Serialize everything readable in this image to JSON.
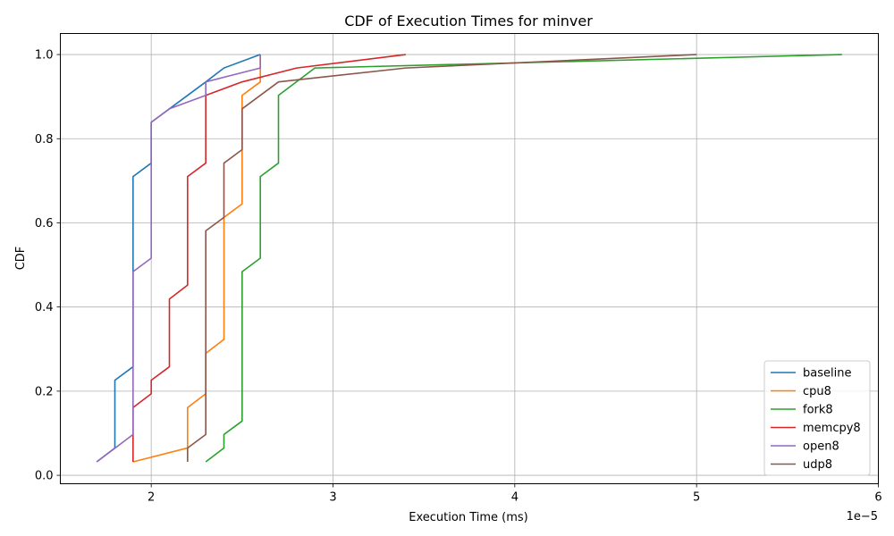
{
  "chart_data": {
    "type": "line",
    "title": "CDF of Execution Times for minver",
    "xlabel": "Execution Time (ms)",
    "ylabel": "CDF",
    "x_offset_label": "1e−5",
    "xlim": [
      1.5,
      6.0
    ],
    "ylim": [
      -0.02,
      1.05
    ],
    "x_ticks": [
      2,
      3,
      4,
      5,
      6
    ],
    "x_tick_labels": [
      "2",
      "3",
      "4",
      "5",
      "6"
    ],
    "y_ticks": [
      0.0,
      0.2,
      0.4,
      0.6,
      0.8,
      1.0
    ],
    "y_tick_labels": [
      "0.0",
      "0.2",
      "0.4",
      "0.6",
      "0.8",
      "1.0"
    ],
    "grid": true,
    "legend_position": "bottom-right",
    "series": [
      {
        "name": "baseline",
        "color": "#1f77b4",
        "points": [
          [
            1.7,
            0.032
          ],
          [
            1.8,
            0.065
          ],
          [
            1.8,
            0.226
          ],
          [
            1.9,
            0.258
          ],
          [
            1.9,
            0.71
          ],
          [
            2.0,
            0.742
          ],
          [
            2.0,
            0.839
          ],
          [
            2.1,
            0.871
          ],
          [
            2.3,
            0.935
          ],
          [
            2.4,
            0.968
          ],
          [
            2.6,
            1.0
          ]
        ]
      },
      {
        "name": "cpu8",
        "color": "#ff7f0e",
        "points": [
          [
            1.9,
            0.032
          ],
          [
            2.2,
            0.065
          ],
          [
            2.2,
            0.161
          ],
          [
            2.3,
            0.194
          ],
          [
            2.3,
            0.29
          ],
          [
            2.4,
            0.323
          ],
          [
            2.4,
            0.613
          ],
          [
            2.5,
            0.645
          ],
          [
            2.5,
            0.903
          ],
          [
            2.6,
            0.935
          ],
          [
            2.6,
            1.0
          ]
        ]
      },
      {
        "name": "fork8",
        "color": "#2ca02c",
        "points": [
          [
            2.3,
            0.032
          ],
          [
            2.4,
            0.065
          ],
          [
            2.4,
            0.097
          ],
          [
            2.5,
            0.129
          ],
          [
            2.5,
            0.484
          ],
          [
            2.6,
            0.516
          ],
          [
            2.6,
            0.71
          ],
          [
            2.7,
            0.742
          ],
          [
            2.7,
            0.903
          ],
          [
            2.9,
            0.968
          ],
          [
            5.8,
            1.0
          ]
        ]
      },
      {
        "name": "memcpy8",
        "color": "#d62728",
        "points": [
          [
            1.9,
            0.032
          ],
          [
            1.9,
            0.161
          ],
          [
            2.0,
            0.194
          ],
          [
            2.0,
            0.226
          ],
          [
            2.1,
            0.258
          ],
          [
            2.1,
            0.419
          ],
          [
            2.2,
            0.452
          ],
          [
            2.2,
            0.71
          ],
          [
            2.3,
            0.742
          ],
          [
            2.3,
            0.903
          ],
          [
            2.5,
            0.935
          ],
          [
            2.8,
            0.968
          ],
          [
            3.4,
            1.0
          ]
        ]
      },
      {
        "name": "open8",
        "color": "#9467bd",
        "points": [
          [
            1.7,
            0.032
          ],
          [
            1.9,
            0.097
          ],
          [
            1.9,
            0.484
          ],
          [
            2.0,
            0.516
          ],
          [
            2.0,
            0.839
          ],
          [
            2.1,
            0.871
          ],
          [
            2.3,
            0.903
          ],
          [
            2.3,
            0.935
          ],
          [
            2.6,
            0.968
          ],
          [
            2.6,
            1.0
          ]
        ]
      },
      {
        "name": "udp8",
        "color": "#8c564b",
        "points": [
          [
            2.2,
            0.032
          ],
          [
            2.2,
            0.065
          ],
          [
            2.3,
            0.097
          ],
          [
            2.3,
            0.581
          ],
          [
            2.4,
            0.613
          ],
          [
            2.4,
            0.742
          ],
          [
            2.5,
            0.774
          ],
          [
            2.5,
            0.871
          ],
          [
            2.7,
            0.935
          ],
          [
            3.4,
            0.968
          ],
          [
            5.0,
            1.0
          ]
        ]
      }
    ]
  }
}
